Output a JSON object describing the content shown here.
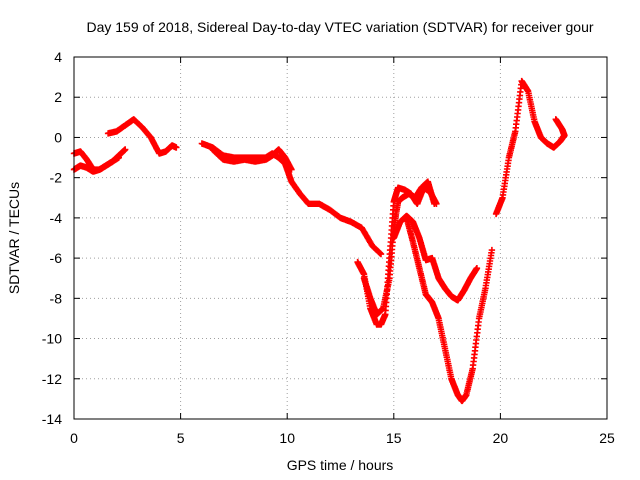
{
  "chart_data": {
    "type": "scatter",
    "title": "Day 159 of 2018, Sidereal Day-to-day VTEC variation (SDTVAR) for receiver gour",
    "xlabel": "GPS time / hours",
    "ylabel": "SDTVAR / TECUs",
    "xlim": [
      0,
      25
    ],
    "ylim": [
      -14,
      4
    ],
    "xticks": [
      "0",
      "5",
      "10",
      "15",
      "20",
      "25"
    ],
    "yticks": [
      "-14",
      "-12",
      "-10",
      "-8",
      "-6",
      "-4",
      "-2",
      "0",
      "2",
      "4"
    ],
    "grid": true,
    "marker": "plus",
    "color": "#ff0000",
    "series": [
      {
        "x": [
          0,
          0.3,
          0.6,
          0.9,
          1.2,
          1.5,
          1.8,
          2.1,
          2.4
        ],
        "y": [
          -1.6,
          -1.4,
          -1.5,
          -1.7,
          -1.6,
          -1.4,
          -1.2,
          -0.9,
          -0.6
        ]
      },
      {
        "x": [
          0,
          0.3,
          0.6,
          0.9,
          1.2,
          1.5,
          1.8,
          2.1
        ],
        "y": [
          -0.8,
          -0.7,
          -1.1,
          -1.6,
          -1.6,
          -1.4,
          -1.2,
          -1.0
        ]
      },
      {
        "x": [
          1.6,
          2.0,
          2.4,
          2.8,
          3.2,
          3.6,
          4.0,
          4.3,
          4.6,
          4.8
        ],
        "y": [
          0.2,
          0.3,
          0.6,
          0.9,
          0.5,
          0.0,
          -0.8,
          -0.7,
          -0.4,
          -0.5
        ]
      },
      {
        "x": [
          6.0,
          6.5,
          7.0,
          7.5,
          8.0,
          8.5,
          9.0,
          9.3,
          9.6,
          9.9,
          10.2,
          10.6,
          11.0,
          11.5,
          12.0,
          12.5,
          13.0,
          13.5,
          14.0,
          14.4
        ],
        "y": [
          -0.3,
          -0.5,
          -0.9,
          -1.0,
          -1.0,
          -1.0,
          -1.0,
          -0.8,
          -1.0,
          -1.3,
          -2.2,
          -2.8,
          -3.3,
          -3.3,
          -3.6,
          -4.0,
          -4.2,
          -4.5,
          -5.4,
          -5.8
        ]
      },
      {
        "x": [
          6.5,
          7.0,
          7.5,
          8.0,
          8.5,
          9.0,
          9.3,
          9.6,
          9.9,
          10.2
        ],
        "y": [
          -0.6,
          -1.1,
          -1.2,
          -1.1,
          -1.2,
          -1.1,
          -0.9,
          -0.6,
          -1.0,
          -1.6
        ]
      },
      {
        "x": [
          13.3,
          13.6,
          13.9,
          14.2,
          14.4,
          14.6,
          14.8,
          15.0,
          15.2,
          15.5,
          15.8,
          16.1,
          16.4,
          16.7,
          17.0
        ],
        "y": [
          -6.2,
          -6.8,
          -8.5,
          -9.3,
          -9.3,
          -8.8,
          -6.0,
          -3.2,
          -2.5,
          -2.6,
          -2.8,
          -3.3,
          -2.5,
          -2.7,
          -3.3
        ]
      },
      {
        "x": [
          13.6,
          13.9,
          14.2,
          14.5,
          14.8,
          15.0,
          15.2,
          15.4,
          15.7,
          16.0,
          16.3,
          16.6,
          16.9
        ],
        "y": [
          -7.0,
          -8.0,
          -8.8,
          -8.5,
          -7.0,
          -4.5,
          -3.2,
          -3.0,
          -2.8,
          -3.0,
          -2.5,
          -2.2,
          -3.3
        ]
      },
      {
        "x": [
          15.0,
          15.3,
          15.6,
          15.9,
          16.2,
          16.5,
          16.8,
          17.1,
          17.4,
          17.7,
          18.0,
          18.3,
          18.6,
          18.9
        ],
        "y": [
          -5.0,
          -4.2,
          -3.9,
          -4.2,
          -5.0,
          -6.1,
          -6.0,
          -7.0,
          -7.5,
          -7.9,
          -8.1,
          -7.6,
          -7.0,
          -6.5
        ]
      },
      {
        "x": [
          15.6,
          15.9,
          16.2,
          16.5,
          16.8,
          17.1,
          17.4,
          17.7,
          18.0,
          18.2,
          18.4,
          18.7,
          19.0,
          19.3,
          19.6
        ],
        "y": [
          -4.0,
          -5.2,
          -6.5,
          -7.8,
          -8.2,
          -9.0,
          -10.5,
          -12.0,
          -12.8,
          -13.1,
          -12.8,
          -11.5,
          -9.0,
          -7.5,
          -5.6
        ]
      },
      {
        "x": [
          19.8,
          20.1,
          20.4,
          20.7,
          21.0,
          21.3,
          21.6,
          21.9,
          22.2,
          22.5,
          22.8,
          23.0
        ],
        "y": [
          -3.8,
          -3.0,
          -1.0,
          0.3,
          2.8,
          2.3,
          0.8,
          0.0,
          -0.3,
          -0.5,
          -0.2,
          0.1
        ]
      },
      {
        "x": [
          22.6,
          22.9,
          23.0
        ],
        "y": [
          0.9,
          0.4,
          0.1
        ]
      }
    ]
  }
}
